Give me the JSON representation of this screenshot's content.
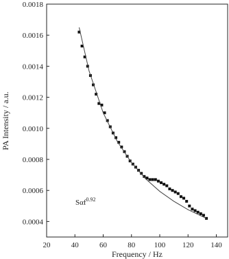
{
  "chart_data": {
    "type": "scatter",
    "x_label": "Frequency / Hz",
    "y_label": "PA Intensity / a.u.",
    "annotation": {
      "text": "Sαf",
      "superscript": "0.92"
    },
    "xlim": [
      20,
      148
    ],
    "ylim": [
      0.0003,
      0.0018
    ],
    "xticks": [
      20,
      40,
      60,
      80,
      100,
      120,
      140
    ],
    "yticks": [
      0.0004,
      0.0006,
      0.0008,
      {
        "value": 0.001,
        "label": "0.0010"
      },
      0.0012,
      0.0014,
      0.0016,
      0.0018
    ],
    "series": [
      {
        "color": "#111111",
        "marker": "square",
        "x": [
          43,
          45,
          47,
          49,
          51,
          53,
          55,
          57,
          59,
          61,
          63,
          65,
          67,
          69,
          71,
          73,
          75,
          77,
          79,
          81,
          83,
          85,
          87,
          89,
          91,
          93,
          95,
          97,
          99,
          101,
          103,
          105,
          107,
          109,
          111,
          113,
          115,
          117,
          119,
          121,
          123,
          125,
          127,
          129,
          131,
          133
        ],
        "values": [
          0.00162,
          0.00153,
          0.00146,
          0.0014,
          0.00134,
          0.00128,
          0.00122,
          0.00116,
          0.00115,
          0.0011,
          0.00105,
          0.00101,
          0.00097,
          0.00094,
          0.00091,
          0.00088,
          0.00085,
          0.00082,
          0.00079,
          0.00077,
          0.00075,
          0.00073,
          0.00071,
          0.00069,
          0.00068,
          0.00067,
          0.00067,
          0.00067,
          0.00066,
          0.00065,
          0.00064,
          0.00063,
          0.00061,
          0.0006,
          0.00059,
          0.00058,
          0.00056,
          0.00055,
          0.00053,
          0.0005,
          0.00048,
          0.00047,
          0.00046,
          0.00045,
          0.00044,
          0.00042
        ]
      },
      {
        "color": "#444444",
        "marker": "line",
        "x": [
          43,
          50,
          60,
          70,
          80,
          90,
          100,
          110,
          120,
          133
        ],
        "values": [
          0.00165,
          0.00137,
          0.0011,
          0.000915,
          0.000779,
          0.000675,
          0.000594,
          0.00053,
          0.000476,
          0.00042
        ]
      }
    ]
  }
}
